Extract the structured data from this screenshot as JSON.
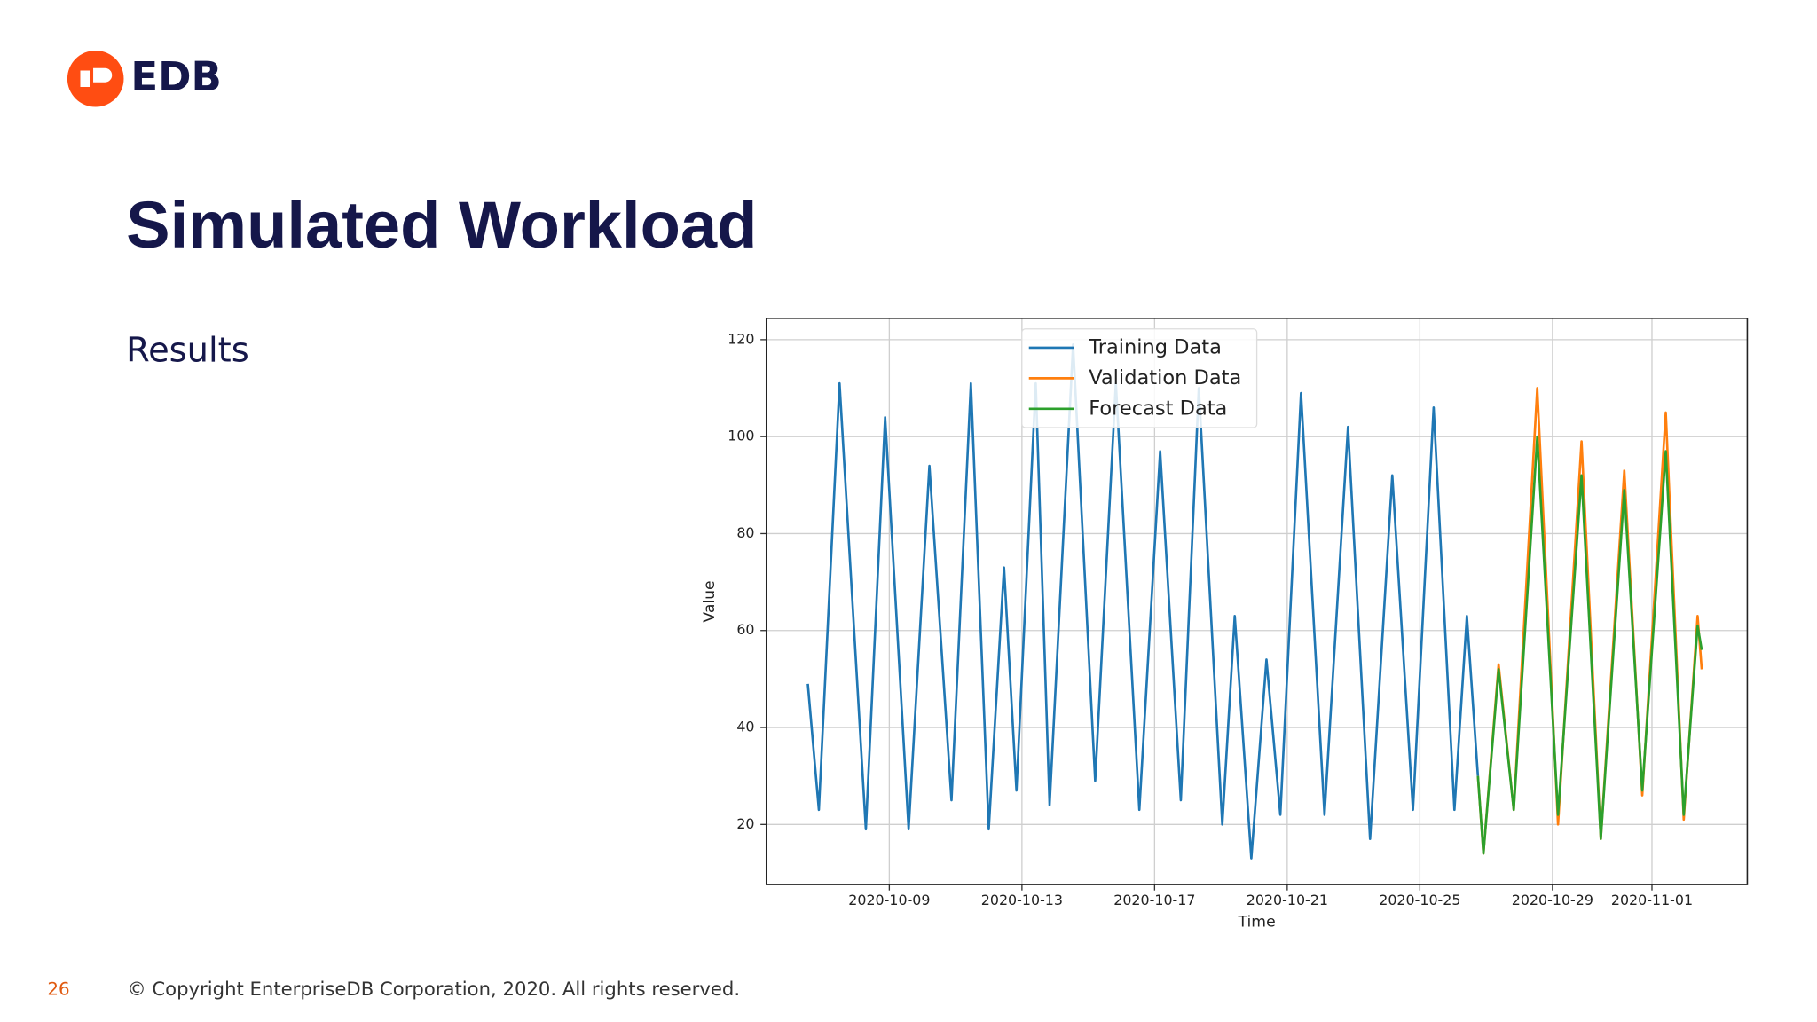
{
  "header": {
    "logo": "EDB",
    "title": "Simulated Workload"
  },
  "body": {
    "subtitle": "Results"
  },
  "chart_data": {
    "type": "line",
    "xlabel": "Time",
    "ylabel": "Value",
    "x": [
      "2020-10-06T13:00",
      "2020-10-06T21:00",
      "2020-10-07T12:00",
      "2020-10-08T07:00",
      "2020-10-08T21:00",
      "2020-10-09T14:00",
      "2020-10-10T05:00",
      "2020-10-10T21:00",
      "2020-10-11T11:00",
      "2020-10-12T00:00",
      "2020-10-12T11:00",
      "2020-10-12T20:00",
      "2020-10-13T10:00",
      "2020-10-13T20:00",
      "2020-10-14T13:00",
      "2020-10-15T05:00",
      "2020-10-15T20:00",
      "2020-10-16T13:00",
      "2020-10-17T04:00",
      "2020-10-17T19:00",
      "2020-10-18T08:00",
      "2020-10-19T01:00",
      "2020-10-19T10:00",
      "2020-10-19T22:00",
      "2020-10-20T09:00",
      "2020-10-20T19:00",
      "2020-10-21T10:00",
      "2020-10-22T03:00",
      "2020-10-22T20:00",
      "2020-10-23T12:00",
      "2020-10-24T04:00",
      "2020-10-24T19:00",
      "2020-10-25T10:00",
      "2020-10-26T01:00",
      "2020-10-26T10:00",
      "2020-10-26T18:00",
      "2020-10-26T22:00",
      "2020-10-27T09:00",
      "2020-10-27T20:00",
      "2020-10-28T13:00",
      "2020-10-29T04:00",
      "2020-10-29T21:00",
      "2020-10-30T11:00",
      "2020-10-31T04:00",
      "2020-10-31T17:00",
      "2020-11-01T10:00",
      "2020-11-01T23:00",
      "2020-11-02T09:00",
      "2020-11-02T12:00"
    ],
    "series": [
      {
        "name": "Training Data",
        "color": "#1f77b4",
        "values": [
          49,
          23,
          111,
          19,
          104,
          19,
          94,
          25,
          111,
          19,
          73,
          27,
          111,
          24,
          119,
          29,
          111,
          23,
          97,
          25,
          110,
          20,
          63,
          13,
          54,
          22,
          109,
          22,
          102,
          17,
          92,
          23,
          106,
          23,
          63,
          30,
          null,
          null,
          null,
          null,
          null,
          null,
          null,
          null,
          null,
          null,
          null,
          null,
          null
        ]
      },
      {
        "name": "Validation Data",
        "color": "#ff7f0e",
        "values": [
          null,
          null,
          null,
          null,
          null,
          null,
          null,
          null,
          null,
          null,
          null,
          null,
          null,
          null,
          null,
          null,
          null,
          null,
          null,
          null,
          null,
          null,
          null,
          null,
          null,
          null,
          null,
          null,
          null,
          null,
          null,
          null,
          null,
          null,
          null,
          30,
          14,
          53,
          23,
          110,
          20,
          99,
          17,
          93,
          26,
          105,
          21,
          63,
          52
        ]
      },
      {
        "name": "Forecast Data",
        "color": "#2ca02c",
        "values": [
          null,
          null,
          null,
          null,
          null,
          null,
          null,
          null,
          null,
          null,
          null,
          null,
          null,
          null,
          null,
          null,
          null,
          null,
          null,
          null,
          null,
          null,
          null,
          null,
          null,
          null,
          null,
          null,
          null,
          null,
          null,
          null,
          null,
          null,
          null,
          30,
          14,
          52,
          23,
          100,
          22,
          92,
          17,
          89,
          27,
          97,
          22,
          61,
          56
        ]
      }
    ],
    "xlim": [
      "2020-10-05T07:00",
      "2020-11-03T21:00"
    ],
    "xticks": [
      "2020-10-09",
      "2020-10-13",
      "2020-10-17",
      "2020-10-21",
      "2020-10-25",
      "2020-10-29",
      "2020-11-01"
    ],
    "ylim": [
      7.6,
      124.4
    ],
    "yticks": [
      20,
      40,
      60,
      80,
      100,
      120
    ],
    "grid": true,
    "legend": "upper center"
  },
  "footer": {
    "page": "26",
    "copyright": "© Copyright EnterpriseDB Corporation, 2020. All rights reserved."
  }
}
